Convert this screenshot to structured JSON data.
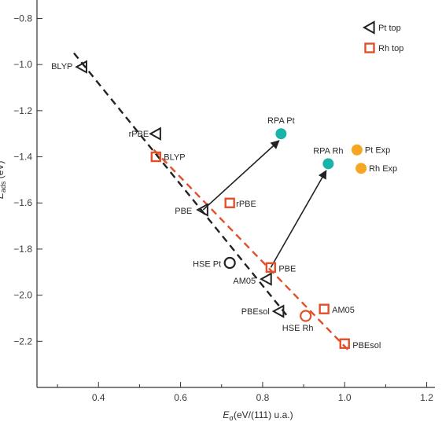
{
  "chart_data": {
    "type": "scatter",
    "xlabel_parts": [
      "E",
      "σ",
      "(eV/(111) u.a.)"
    ],
    "ylabel_parts": [
      "E",
      "ads",
      " (eV)"
    ],
    "xlim": [
      0.25,
      1.22
    ],
    "ylim": [
      -2.4,
      -0.72
    ],
    "xticks": [
      0.4,
      0.6,
      0.8,
      1.0,
      1.2
    ],
    "xtick_labels": [
      "0.4",
      "0.6",
      "0.8",
      "1.0",
      "1.2"
    ],
    "xminor": [
      0.3,
      0.5,
      0.7,
      0.9,
      1.1
    ],
    "yticks": [
      -0.8,
      -1.0,
      -1.2,
      -1.4,
      -1.6,
      -1.8,
      -2.0,
      -2.2
    ],
    "ytick_labels": [
      "−0.8",
      "−1.0",
      "−1.2",
      "−1.4",
      "−1.6",
      "−1.8",
      "−2.0",
      "−2.2"
    ],
    "grid": false,
    "legend_position": "top-right",
    "legend": [
      {
        "marker": "triangle-left-open",
        "label": "Pt top",
        "color": "#222222"
      },
      {
        "marker": "square-open",
        "label": "Rh top",
        "color": "#e2502a"
      }
    ],
    "colors": {
      "pt": "#222222",
      "rh": "#e2502a",
      "rpa": "#1ab3aa",
      "exp": "#f5a623",
      "axis": "#333333"
    },
    "series": [
      {
        "name": "Pt top",
        "marker": "triangle-left-open",
        "color": "#222222",
        "points": [
          {
            "x": 0.36,
            "y": -1.01,
            "label": "BLYP"
          },
          {
            "x": 0.54,
            "y": -1.3,
            "label": "rPBE"
          },
          {
            "x": 0.655,
            "y": -1.63,
            "label": "PBE"
          },
          {
            "x": 0.81,
            "y": -1.93,
            "label": "AM05"
          },
          {
            "x": 0.84,
            "y": -2.07,
            "label": "PBEsol"
          }
        ]
      },
      {
        "name": "Rh top",
        "marker": "square-open",
        "color": "#e2502a",
        "points": [
          {
            "x": 0.54,
            "y": -1.4,
            "label": "BLYP"
          },
          {
            "x": 0.72,
            "y": -1.6,
            "label": "rPBE"
          },
          {
            "x": 0.82,
            "y": -1.88,
            "label": "PBE"
          },
          {
            "x": 0.95,
            "y": -2.06,
            "label": "AM05"
          },
          {
            "x": 1.0,
            "y": -2.21,
            "label": "PBEsol"
          }
        ]
      }
    ],
    "extra_points": [
      {
        "x": 0.845,
        "y": -1.3,
        "label": "RPA Pt",
        "marker": "circle-filled",
        "color": "#1ab3aa"
      },
      {
        "x": 0.96,
        "y": -1.43,
        "label": "RPA Rh",
        "marker": "circle-filled",
        "color": "#1ab3aa"
      },
      {
        "x": 1.03,
        "y": -1.37,
        "label": "Pt Exp",
        "marker": "circle-filled",
        "color": "#f5a623"
      },
      {
        "x": 1.04,
        "y": -1.45,
        "label": "Rh Exp",
        "marker": "circle-filled",
        "color": "#f5a623"
      },
      {
        "x": 0.72,
        "y": -1.86,
        "label": "HSE Pt",
        "marker": "circle-open",
        "color": "#222222"
      },
      {
        "x": 0.905,
        "y": -2.09,
        "label": "HSE Rh",
        "marker": "circle-open",
        "color": "#e2502a"
      }
    ],
    "fit_lines": [
      {
        "from": [
          0.34,
          -0.95
        ],
        "to": [
          0.86,
          -2.09
        ],
        "color": "#222222",
        "style": "dashed"
      },
      {
        "from": [
          0.535,
          -1.37
        ],
        "to": [
          1.01,
          -2.24
        ],
        "color": "#e2502a",
        "style": "dashed"
      }
    ],
    "arrows": [
      {
        "from": [
          0.655,
          -1.63
        ],
        "to": [
          0.84,
          -1.33
        ],
        "color": "#222222"
      },
      {
        "from": [
          0.82,
          -1.88
        ],
        "to": [
          0.955,
          -1.46
        ],
        "color": "#222222"
      }
    ]
  }
}
